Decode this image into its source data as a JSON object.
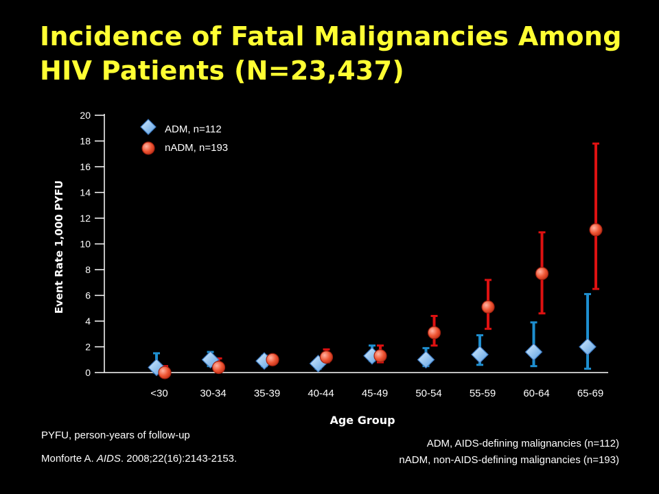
{
  "title_line1": "Incidence of Fatal Malignancies Among",
  "title_line2": "HIV Patients (N=23,437)",
  "colors": {
    "title": "#ffff33",
    "adm": "#1e8fd0",
    "nadm": "#dd1111",
    "text": "#ffffff"
  },
  "footnotes": {
    "pyfu": "PYFU, person-years of follow-up",
    "citation_author": "Monforte A. ",
    "citation_journal": "AIDS",
    "citation_rest": ". 2008;22(16):2143-2153.",
    "adm_def": "ADM, AIDS-defining malignancies (n=112)",
    "nadm_def": "nADM, non-AIDS-defining malignancies (n=193)"
  },
  "chart_data": {
    "type": "scatter",
    "title": "",
    "xlabel": "Age Group",
    "ylabel": "Event Rate  1,000 PYFU",
    "categories": [
      "<30",
      "30-34",
      "35-39",
      "40-44",
      "45-49",
      "50-54",
      "55-59",
      "60-64",
      "65-69"
    ],
    "ylim": [
      0,
      20
    ],
    "yticks": [
      0,
      2,
      4,
      6,
      8,
      10,
      12,
      14,
      16,
      18,
      20
    ],
    "legend_position": "top-left",
    "series": [
      {
        "name": "ADM, n=112",
        "marker": "diamond",
        "color": "#1e8fd0",
        "values": [
          0.4,
          1.0,
          0.9,
          0.7,
          1.3,
          1.0,
          1.4,
          1.6,
          2.0
        ],
        "ci_low": [
          0.0,
          0.5,
          0.5,
          0.3,
          0.9,
          0.5,
          0.6,
          0.5,
          0.3
        ],
        "ci_high": [
          1.5,
          1.6,
          1.3,
          1.0,
          2.1,
          1.9,
          2.9,
          3.9,
          6.1
        ]
      },
      {
        "name": "nADM, n=193",
        "marker": "circle",
        "color": "#dd1111",
        "values": [
          0.0,
          0.4,
          1.0,
          1.2,
          1.3,
          3.1,
          5.1,
          7.7,
          11.1
        ],
        "ci_low": [
          0.0,
          0.1,
          0.7,
          0.8,
          0.8,
          2.1,
          3.4,
          4.6,
          6.5
        ],
        "ci_high": [
          0.5,
          1.1,
          1.3,
          1.8,
          2.1,
          4.4,
          7.2,
          10.9,
          17.8
        ]
      }
    ]
  }
}
